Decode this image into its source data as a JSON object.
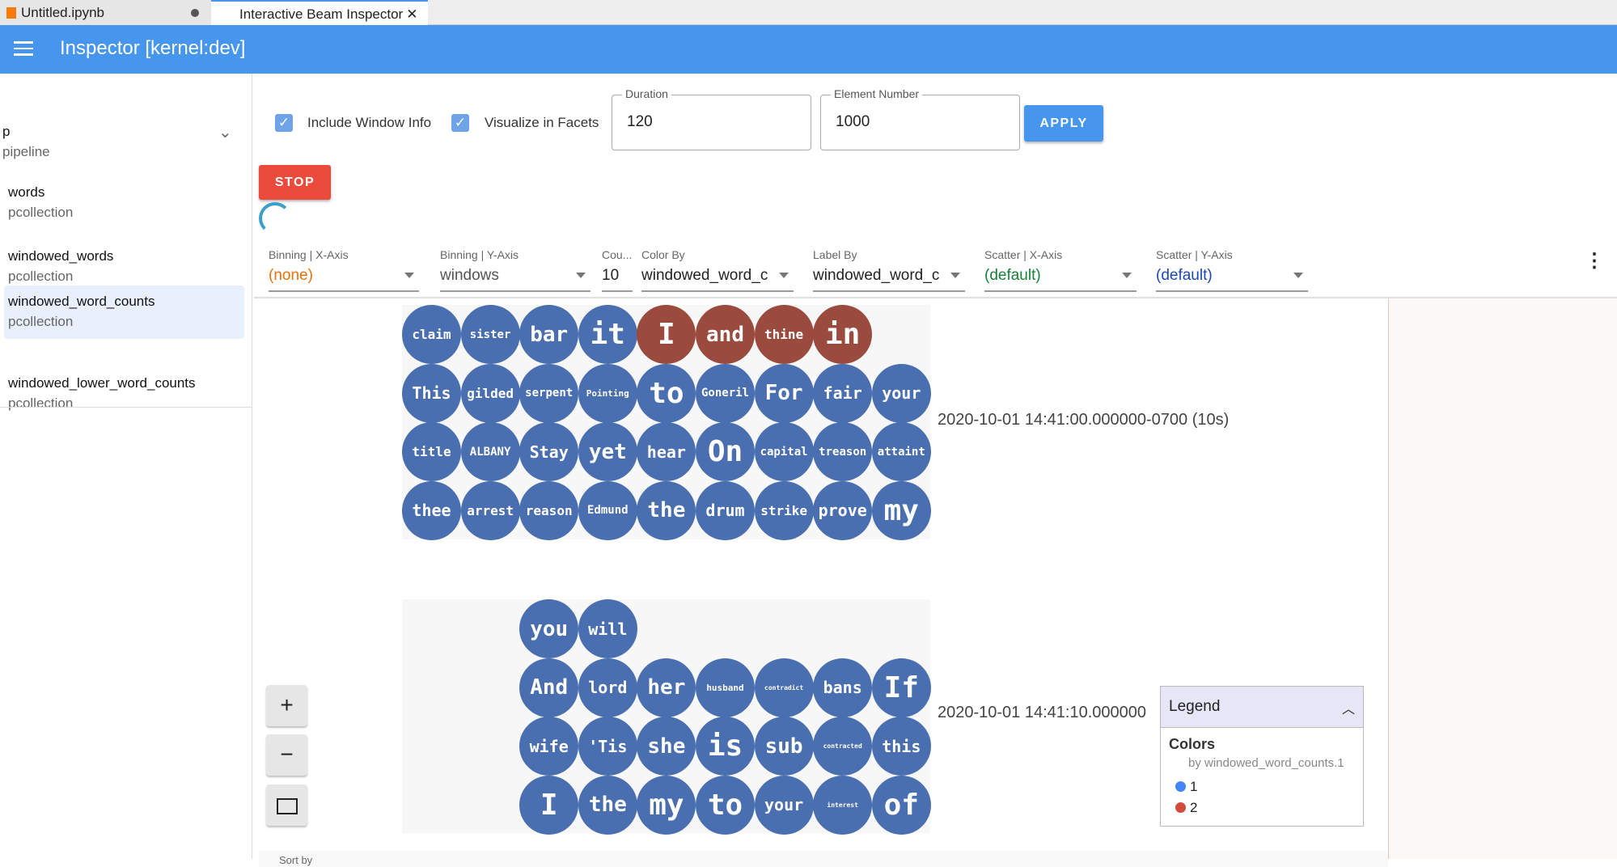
{
  "tabs": [
    {
      "label": "Untitled.ipynb",
      "icon": "notebook-icon",
      "modified": true
    },
    {
      "label": "Interactive Beam Inspector",
      "active": true
    }
  ],
  "header": {
    "title": "Inspector [kernel:dev]",
    "accent": "#4596ec"
  },
  "sidebar": {
    "items": [
      {
        "name": "p",
        "type": "pipeline",
        "expanded": true
      },
      {
        "name": "words",
        "type": "pcollection"
      },
      {
        "name": "windowed_words",
        "type": "pcollection"
      },
      {
        "name": "windowed_word_counts",
        "type": "pcollection",
        "selected": true
      },
      {
        "name": "windowed_lower_word_counts",
        "type": "pcollection"
      }
    ]
  },
  "options": {
    "include_window_info": {
      "label": "Include Window Info",
      "checked": true
    },
    "visualize_in_facets": {
      "label": "Visualize in Facets",
      "checked": true
    },
    "duration": {
      "label": "Duration",
      "value": "120"
    },
    "element_number": {
      "label": "Element Number",
      "value": "1000"
    },
    "apply": "APPLY",
    "stop": "STOP"
  },
  "facets_controls": [
    {
      "label": "Binning | X-Axis",
      "value": "(none)",
      "color": "#e8710a"
    },
    {
      "label": "Binning | Y-Axis",
      "value": "windows",
      "color": "#555555"
    },
    {
      "label": "Cou...",
      "value": "10",
      "color": "#222222"
    },
    {
      "label": "Color By",
      "value": "windowed_word_c",
      "color": "#222222"
    },
    {
      "label": "Label By",
      "value": "windowed_word_c",
      "color": "#222222"
    },
    {
      "label": "Scatter | X-Axis",
      "value": "(default)",
      "color": "#188038"
    },
    {
      "label": "Scatter | Y-Axis",
      "value": "(default)",
      "color": "#1a47b8"
    }
  ],
  "colors": {
    "1": "#4a6fb0",
    "2": "#9b4a3e"
  },
  "facets": [
    {
      "label": "2020-10-01 14:41:00.000000-0700 (10s)",
      "rows": [
        [
          [
            "claim",
            1,
            "s"
          ],
          [
            "sister",
            1,
            "xs"
          ],
          [
            "bar",
            1,
            "l"
          ],
          [
            "it",
            1,
            "xl"
          ],
          [
            "I",
            2,
            "xl"
          ],
          [
            "and",
            2,
            "l"
          ],
          [
            "thine",
            2,
            "s"
          ],
          [
            "in",
            2,
            "xl"
          ]
        ],
        [
          [
            "This",
            1,
            "m"
          ],
          [
            "gilded",
            1,
            "s"
          ],
          [
            "serpent",
            1,
            "xs"
          ],
          [
            "Pointing",
            1,
            "xxs"
          ],
          [
            "to",
            1,
            "xl"
          ],
          [
            "Goneril",
            1,
            "xs"
          ],
          [
            "For",
            1,
            "l"
          ],
          [
            "fair",
            1,
            "m"
          ],
          [
            "your",
            1,
            "m"
          ]
        ],
        [
          [
            "title",
            1,
            "s"
          ],
          [
            "ALBANY",
            1,
            "xs"
          ],
          [
            "Stay",
            1,
            "m"
          ],
          [
            "yet",
            1,
            "l"
          ],
          [
            "hear",
            1,
            "m"
          ],
          [
            "On",
            1,
            "xl"
          ],
          [
            "capital",
            1,
            "xs"
          ],
          [
            "treason",
            1,
            "xs"
          ],
          [
            "attaint",
            1,
            "xs"
          ]
        ],
        [
          [
            "thee",
            1,
            "m"
          ],
          [
            "arrest",
            1,
            "s"
          ],
          [
            "reason",
            1,
            "s"
          ],
          [
            "Edmund",
            1,
            "xs"
          ],
          [
            "the",
            1,
            "l"
          ],
          [
            "drum",
            1,
            "m"
          ],
          [
            "strike",
            1,
            "s"
          ],
          [
            "prove",
            1,
            "m"
          ],
          [
            "my",
            1,
            "xl"
          ]
        ]
      ],
      "offset": 0
    },
    {
      "label": "2020-10-01 14:41:10.000000",
      "rows": [
        [
          [
            "you",
            1,
            "l"
          ],
          [
            "will",
            1,
            "m"
          ]
        ],
        [
          [
            "And",
            1,
            "l"
          ],
          [
            "lord",
            1,
            "m"
          ],
          [
            "her",
            1,
            "l"
          ],
          [
            "husband",
            1,
            "xxs"
          ],
          [
            "contradict",
            1,
            "xxxs"
          ],
          [
            "bans",
            1,
            "m"
          ],
          [
            "If",
            1,
            "xl"
          ]
        ],
        [
          [
            "wife",
            1,
            "m"
          ],
          [
            "'Tis",
            1,
            "m"
          ],
          [
            "she",
            1,
            "l"
          ],
          [
            "is",
            1,
            "xl"
          ],
          [
            "sub",
            1,
            "l"
          ],
          [
            "contracted",
            1,
            "xxxs"
          ],
          [
            "this",
            1,
            "m"
          ]
        ],
        [
          [
            "I",
            1,
            "xl"
          ],
          [
            "the",
            1,
            "l"
          ],
          [
            "my",
            1,
            "xl"
          ],
          [
            "to",
            1,
            "xl"
          ],
          [
            "your",
            1,
            "m"
          ],
          [
            "interest",
            1,
            "xxxs"
          ],
          [
            "of",
            1,
            "xl"
          ]
        ]
      ],
      "offset": 2
    }
  ],
  "legend": {
    "title": "Legend",
    "section": "Colors",
    "subtitle": "by windowed_word_counts.1",
    "entries": [
      {
        "label": "1",
        "color": "#4285f4"
      },
      {
        "label": "2",
        "color": "#d34b3b"
      }
    ]
  },
  "sort_by": "Sort by"
}
